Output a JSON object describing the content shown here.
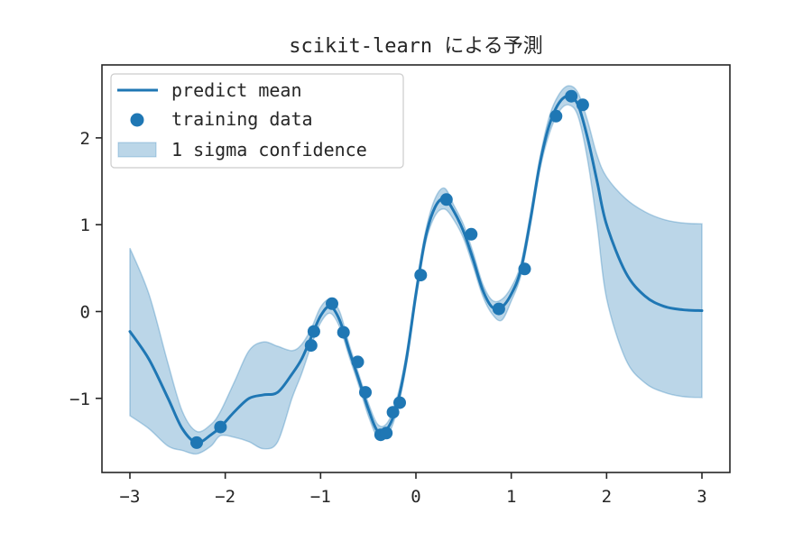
{
  "chart_data": {
    "type": "line",
    "title": "scikit-learn による予測",
    "xlabel": "",
    "ylabel": "",
    "xlim": [
      -3.3,
      3.3
    ],
    "ylim": [
      -1.85,
      2.8
    ],
    "grid": false,
    "legend_position": "upper left",
    "x_ticks": [
      -3,
      -2,
      -1,
      0,
      1,
      2,
      3
    ],
    "x_tick_labels": [
      "−3",
      "−2",
      "−1",
      "0",
      "1",
      "2",
      "3"
    ],
    "y_ticks": [
      -1,
      0,
      1,
      2
    ],
    "y_tick_labels": [
      "−1",
      "0",
      "1",
      "2"
    ],
    "legend": [
      {
        "label": "predict mean",
        "kind": "line"
      },
      {
        "label": "training data",
        "kind": "marker"
      },
      {
        "label": "1 sigma confidence",
        "kind": "patch"
      }
    ],
    "colors": {
      "line": "#1f77b4",
      "fill": "#1f77b4",
      "fill_alpha": 0.3
    },
    "series": [
      {
        "name": "predict mean",
        "x": [
          -3.0,
          -2.8,
          -2.6,
          -2.45,
          -2.3,
          -2.15,
          -2.05,
          -1.9,
          -1.75,
          -1.6,
          -1.45,
          -1.3,
          -1.2,
          -1.1,
          -1.0,
          -0.9,
          -0.8,
          -0.7,
          -0.6,
          -0.5,
          -0.4,
          -0.3,
          -0.2,
          -0.1,
          0.0,
          0.1,
          0.2,
          0.3,
          0.4,
          0.5,
          0.6,
          0.7,
          0.8,
          0.9,
          1.0,
          1.1,
          1.2,
          1.3,
          1.4,
          1.5,
          1.6,
          1.7,
          1.8,
          1.9,
          2.0,
          2.2,
          2.4,
          2.6,
          2.8,
          3.0
        ],
        "y": [
          -0.23,
          -0.55,
          -1.0,
          -1.35,
          -1.51,
          -1.42,
          -1.33,
          -1.15,
          -1.0,
          -0.96,
          -0.93,
          -0.72,
          -0.55,
          -0.3,
          -0.05,
          0.06,
          -0.1,
          -0.45,
          -0.78,
          -1.12,
          -1.38,
          -1.35,
          -1.08,
          -0.55,
          0.2,
          0.85,
          1.2,
          1.3,
          1.15,
          0.92,
          0.6,
          0.25,
          0.05,
          0.05,
          0.2,
          0.48,
          1.05,
          1.7,
          2.15,
          2.4,
          2.48,
          2.38,
          2.0,
          1.5,
          1.0,
          0.45,
          0.18,
          0.06,
          0.02,
          0.01
        ]
      },
      {
        "name": "1 sigma confidence",
        "x": [
          -3.0,
          -2.8,
          -2.6,
          -2.45,
          -2.3,
          -2.15,
          -2.05,
          -1.9,
          -1.75,
          -1.6,
          -1.45,
          -1.3,
          -1.2,
          -1.1,
          -1.0,
          -0.9,
          -0.8,
          -0.7,
          -0.6,
          -0.5,
          -0.4,
          -0.3,
          -0.2,
          -0.1,
          0.0,
          0.1,
          0.2,
          0.3,
          0.4,
          0.5,
          0.6,
          0.7,
          0.8,
          0.9,
          1.0,
          1.1,
          1.2,
          1.3,
          1.4,
          1.5,
          1.6,
          1.7,
          1.8,
          1.9,
          2.0,
          2.2,
          2.4,
          2.6,
          2.8,
          3.0
        ],
        "upper": [
          0.73,
          0.2,
          -0.6,
          -1.15,
          -1.38,
          -1.3,
          -1.15,
          -0.8,
          -0.45,
          -0.35,
          -0.4,
          -0.45,
          -0.38,
          -0.2,
          0.05,
          0.14,
          0.0,
          -0.38,
          -0.72,
          -1.05,
          -1.3,
          -1.28,
          -1.0,
          -0.48,
          0.27,
          0.92,
          1.3,
          1.42,
          1.22,
          1.0,
          0.68,
          0.32,
          0.13,
          0.14,
          0.28,
          0.55,
          1.12,
          1.77,
          2.25,
          2.5,
          2.6,
          2.52,
          2.2,
          1.8,
          1.55,
          1.3,
          1.15,
          1.06,
          1.02,
          1.01
        ],
        "lower": [
          -1.2,
          -1.35,
          -1.55,
          -1.6,
          -1.64,
          -1.55,
          -1.43,
          -1.45,
          -1.5,
          -1.58,
          -1.5,
          -1.0,
          -0.72,
          -0.4,
          -0.13,
          -0.02,
          -0.18,
          -0.52,
          -0.85,
          -1.2,
          -1.45,
          -1.43,
          -1.15,
          -0.62,
          0.13,
          0.78,
          1.1,
          1.18,
          1.05,
          0.84,
          0.52,
          0.18,
          -0.03,
          -0.1,
          0.12,
          0.41,
          0.98,
          1.63,
          2.05,
          2.3,
          2.38,
          2.25,
          1.75,
          1.0,
          0.15,
          -0.55,
          -0.82,
          -0.93,
          -0.98,
          -0.99
        ]
      },
      {
        "name": "training data",
        "x": [
          -2.3,
          -2.05,
          -1.1,
          -1.07,
          -0.88,
          -0.76,
          -0.61,
          -0.53,
          -0.37,
          -0.31,
          -0.24,
          -0.17,
          0.05,
          0.32,
          0.58,
          0.87,
          1.14,
          1.47,
          1.63,
          1.75
        ],
        "y": [
          -1.51,
          -1.33,
          -0.39,
          -0.23,
          0.09,
          -0.24,
          -0.58,
          -0.93,
          -1.42,
          -1.4,
          -1.16,
          -1.05,
          0.42,
          1.29,
          0.89,
          0.03,
          0.49,
          2.25,
          2.48,
          2.38
        ]
      }
    ]
  }
}
